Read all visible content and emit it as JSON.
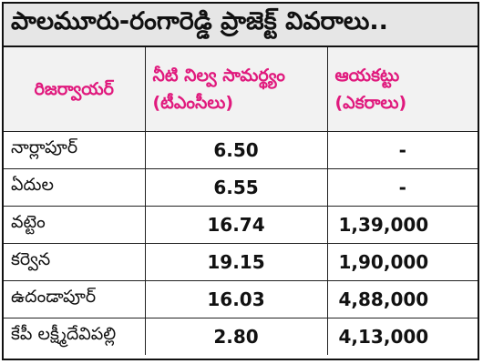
{
  "title": "పాలమూరు-రంగారెడ్డి ప్రాజెక్ట్ వివరాలు..",
  "colors": {
    "header_text": "#e0197d",
    "title_background": "#e6e6e6",
    "header_background": "#f2f2f2",
    "border": "#222222"
  },
  "table": {
    "headers": {
      "reservoir": "రిజర్వాయర్",
      "capacity_line1": "నీటి నిల్వ సామర్థ్యం",
      "capacity_line2": "(టీఎంసీలు)",
      "ayacut_line1": "ఆయకట్టు",
      "ayacut_line2": "(ఎకరాలు)"
    },
    "rows": [
      {
        "reservoir": "నార్లాపూర్",
        "capacity": "6.50",
        "ayacut": "-"
      },
      {
        "reservoir": "ఏదుల",
        "capacity": "6.55",
        "ayacut": "-"
      },
      {
        "reservoir": "వట్టెం",
        "capacity": "16.74",
        "ayacut": "1,39,000"
      },
      {
        "reservoir": "కర్వెన",
        "capacity": "19.15",
        "ayacut": "1,90,000"
      },
      {
        "reservoir": "ఉదండాపూర్",
        "capacity": "16.03",
        "ayacut": "4,88,000"
      },
      {
        "reservoir": "కేపీ లక్ష్మీదేవిపల్లి",
        "capacity": "2.80",
        "ayacut": "4,13,000"
      }
    ]
  }
}
